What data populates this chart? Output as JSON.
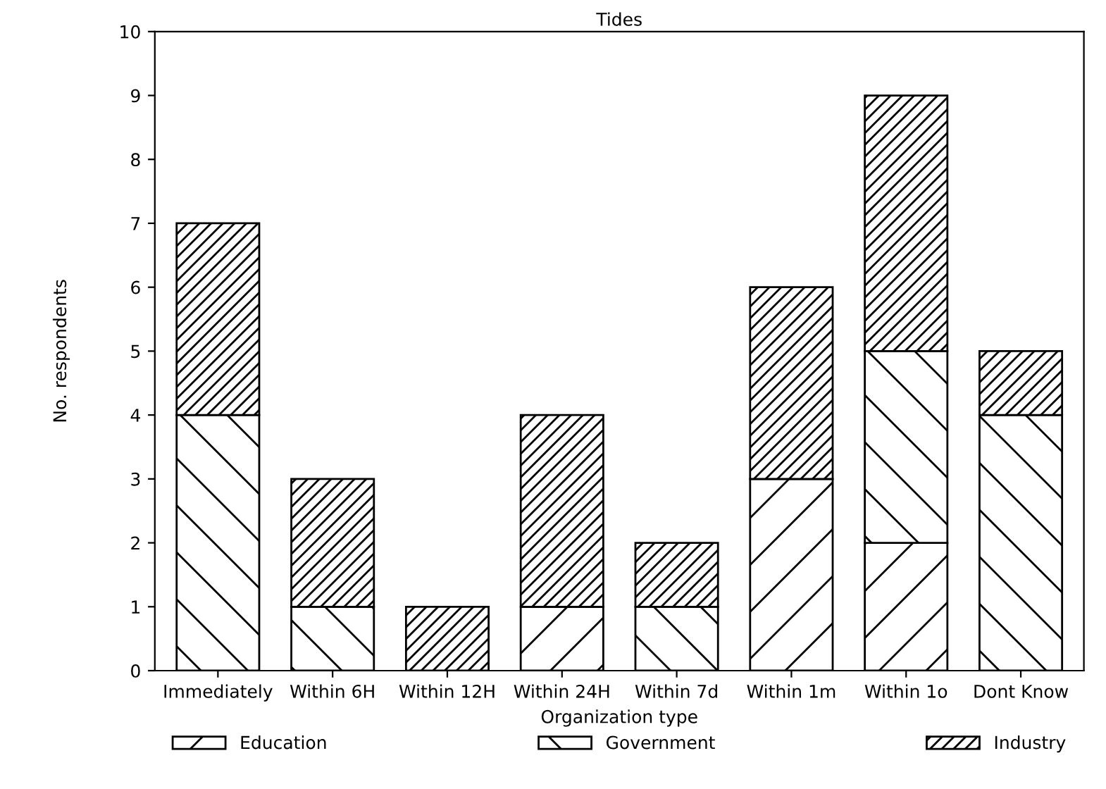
{
  "chart_data": {
    "type": "bar",
    "title": "Tides",
    "ylabel": "No. respondents",
    "legend_title": "Organization type",
    "categories": [
      "Immediately",
      "Within 6H",
      "Within 12H",
      "Within 24H",
      "Within 7d",
      "Within 1m",
      "Within 1o",
      "Dont Know"
    ],
    "stacked": true,
    "ylim": [
      0,
      10
    ],
    "yticks": [
      0,
      1,
      2,
      3,
      4,
      5,
      6,
      7,
      8,
      9,
      10
    ],
    "grid": false,
    "legend": "bottom",
    "series": [
      {
        "name": "Education",
        "color": "#000000",
        "values": [
          0,
          0,
          0,
          1,
          0,
          3,
          2,
          0
        ]
      },
      {
        "name": "Government",
        "color": "#000000",
        "values": [
          4,
          1,
          0,
          0,
          1,
          0,
          3,
          4
        ]
      },
      {
        "name": "Industry",
        "color": "#000000",
        "values": [
          3,
          2,
          1,
          3,
          1,
          3,
          4,
          1
        ]
      }
    ]
  }
}
